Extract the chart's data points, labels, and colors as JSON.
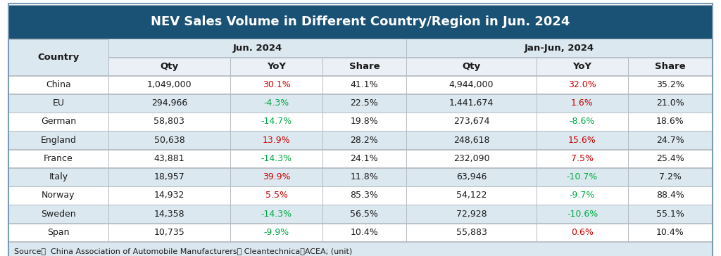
{
  "title": "NEV Sales Volume in Different Country/Region in Jun. 2024",
  "title_bg": "#1a5276",
  "title_color": "#ffffff",
  "rows": [
    [
      "China",
      "1,049,000",
      "30.1%",
      "41.1%",
      "4,944,000",
      "32.0%",
      "35.2%"
    ],
    [
      "EU",
      "294,966",
      "-4.3%",
      "22.5%",
      "1,441,674",
      "1.6%",
      "21.0%"
    ],
    [
      "German",
      "58,803",
      "-14.7%",
      "19.8%",
      "273,674",
      "-8.6%",
      "18.6%"
    ],
    [
      "England",
      "50,638",
      "13.9%",
      "28.2%",
      "248,618",
      "15.6%",
      "24.7%"
    ],
    [
      "France",
      "43,881",
      "-14.3%",
      "24.1%",
      "232,090",
      "7.5%",
      "25.4%"
    ],
    [
      "Italy",
      "18,957",
      "39.9%",
      "11.8%",
      "63,946",
      "-10.7%",
      "7.2%"
    ],
    [
      "Norway",
      "14,932",
      "5.5%",
      "85.3%",
      "54,122",
      "-9.7%",
      "88.4%"
    ],
    [
      "Sweden",
      "14,358",
      "-14.3%",
      "56.5%",
      "72,928",
      "-10.6%",
      "55.1%"
    ],
    [
      "Span",
      "10,735",
      "-9.9%",
      "10.4%",
      "55,883",
      "0.6%",
      "10.4%"
    ]
  ],
  "yoy_colors": [
    [
      "red",
      "red"
    ],
    [
      "green",
      "red"
    ],
    [
      "green",
      "green"
    ],
    [
      "red",
      "red"
    ],
    [
      "green",
      "red"
    ],
    [
      "red",
      "green"
    ],
    [
      "red",
      "green"
    ],
    [
      "green",
      "green"
    ],
    [
      "green",
      "red"
    ]
  ],
  "row_bg_white": "#ffffff",
  "row_bg_gray": "#dce8f0",
  "header_bg": "#dce8f0",
  "header_bg_light": "#eaf0f6",
  "source_text": "Source：  China Association of Automobile Manufacturers、 Cleantechnica和ACEA; (unit)",
  "col_widths_ratio": [
    1.3,
    1.6,
    1.2,
    1.1,
    1.7,
    1.2,
    1.1
  ]
}
